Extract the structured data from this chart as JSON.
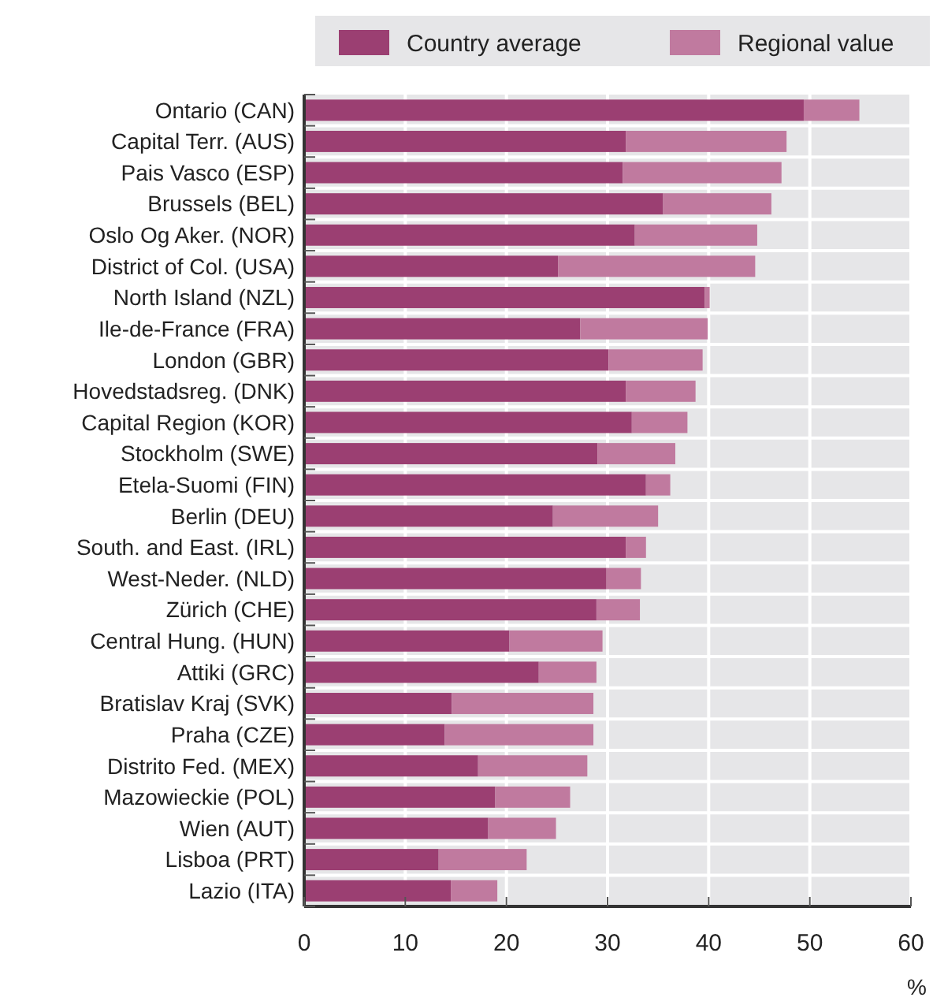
{
  "chart_data": {
    "type": "bar",
    "orientation": "horizontal",
    "stacked": true,
    "xlabel": "%",
    "categories": [
      "Ontario (CAN)",
      "Capital Terr. (AUS)",
      "Pais Vasco (ESP)",
      "Brussels (BEL)",
      "Oslo Og Aker. (NOR)",
      "District of Col. (USA)",
      "North Island (NZL)",
      "Ile-de-France (FRA)",
      "London (GBR)",
      "Hovedstadsreg. (DNK)",
      "Capital Region (KOR)",
      "Stockholm (SWE)",
      "Etela-Suomi (FIN)",
      "Berlin (DEU)",
      "South. and East. (IRL)",
      "West-Neder. (NLD)",
      "Zürich (CHE)",
      "Central Hung. (HUN)",
      "Attiki (GRC)",
      "Bratislav Kraj (SVK)",
      "Praha (CZE)",
      "Distrito Fed. (MEX)",
      "Mazowieckie (POL)",
      "Wien (AUT)",
      "Lisboa (PRT)",
      "Lazio (ITA)"
    ],
    "series": [
      {
        "name": "Country average",
        "color": "#9b3f72",
        "values": [
          49.4,
          31.8,
          31.5,
          35.5,
          32.7,
          25.1,
          39.6,
          27.3,
          30.1,
          31.8,
          32.4,
          29.0,
          33.8,
          24.6,
          31.8,
          29.9,
          28.9,
          20.3,
          23.2,
          14.6,
          13.9,
          17.2,
          18.9,
          18.2,
          13.3,
          14.5
        ]
      },
      {
        "name": "Regional value",
        "color": "#c07a9f",
        "values": [
          5.5,
          15.9,
          15.7,
          10.7,
          12.1,
          19.5,
          0.5,
          12.6,
          9.3,
          6.9,
          5.5,
          7.7,
          2.4,
          10.4,
          2.0,
          3.4,
          4.3,
          9.2,
          5.7,
          14.0,
          14.7,
          10.8,
          7.4,
          6.7,
          8.7,
          4.6
        ]
      }
    ],
    "xlim": [
      0,
      60
    ],
    "xticks": [
      0,
      10,
      20,
      30,
      40,
      50,
      60
    ],
    "grid": true,
    "legend": "top right"
  }
}
